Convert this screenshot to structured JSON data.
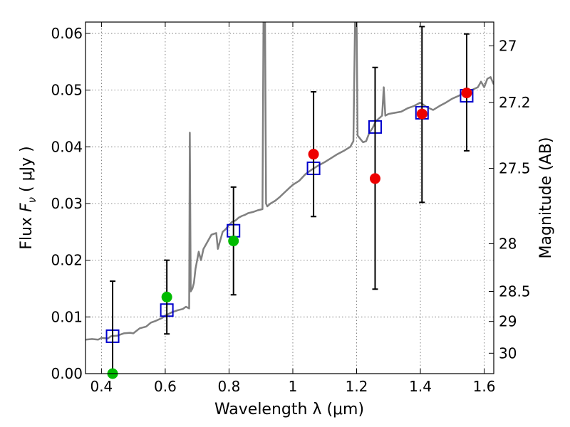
{
  "chart_data": {
    "type": "scatter",
    "title": "",
    "xlabel": "Wavelength  λ (μm)",
    "ylabel": "Flux  Fν  ( μJy )",
    "ylabel_parts": {
      "prefix": "Flux ",
      "symbol": "F",
      "sub": "ν",
      "unit": "  ( μJy )"
    },
    "xlabel_parts": {
      "text": "Wavelength  λ (μm)"
    },
    "y2label": "Magnitude (AB)",
    "xlim": [
      0.35,
      1.63
    ],
    "ylim": [
      0.0,
      0.062
    ],
    "grid": true,
    "x_ticks": [
      0.4,
      0.6,
      0.8,
      1.0,
      1.2,
      1.4,
      1.6
    ],
    "x_tick_labels": [
      "0.4",
      "0.6",
      "0.8",
      "1",
      "1.2",
      "1.4",
      "1.6"
    ],
    "y_ticks": [
      0.0,
      0.01,
      0.02,
      0.03,
      0.04,
      0.05,
      0.06
    ],
    "y_tick_labels": [
      "0.00",
      "0.01",
      "0.02",
      "0.03",
      "0.04",
      "0.05",
      "0.06"
    ],
    "mag_ticks": [
      {
        "label": "27",
        "flux": 0.0578
      },
      {
        "label": "27.2",
        "flux": 0.0478
      },
      {
        "label": "27.5",
        "flux": 0.0362
      },
      {
        "label": "28",
        "flux": 0.0229
      },
      {
        "label": "28.5",
        "flux": 0.0145
      },
      {
        "label": "29",
        "flux": 0.0092
      },
      {
        "label": "30",
        "flux": 0.0036
      }
    ],
    "colors": {
      "spectrum": "#808080",
      "model": "#0000cc",
      "obs_green": "#00bb00",
      "obs_red": "#ee0000",
      "errorbar": "#000000",
      "grid": "#666666"
    },
    "series": [
      {
        "kind": "line",
        "points": [
          [
            0.35,
            0.006
          ],
          [
            0.37,
            0.0061
          ],
          [
            0.39,
            0.006
          ],
          [
            0.4,
            0.0063
          ],
          [
            0.42,
            0.0062
          ],
          [
            0.43,
            0.0066
          ],
          [
            0.45,
            0.0067
          ],
          [
            0.47,
            0.0071
          ],
          [
            0.49,
            0.0072
          ],
          [
            0.5,
            0.0071
          ],
          [
            0.52,
            0.008
          ],
          [
            0.54,
            0.0083
          ],
          [
            0.555,
            0.009
          ],
          [
            0.57,
            0.0093
          ],
          [
            0.59,
            0.0098
          ],
          [
            0.6,
            0.0102
          ],
          [
            0.62,
            0.0108
          ],
          [
            0.64,
            0.0112
          ],
          [
            0.655,
            0.0114
          ],
          [
            0.665,
            0.0118
          ],
          [
            0.675,
            0.0115
          ],
          [
            0.677,
            0.0425
          ],
          [
            0.68,
            0.0145
          ],
          [
            0.685,
            0.015
          ],
          [
            0.69,
            0.016
          ],
          [
            0.695,
            0.0185
          ],
          [
            0.7,
            0.02
          ],
          [
            0.705,
            0.0215
          ],
          [
            0.712,
            0.02
          ],
          [
            0.72,
            0.022
          ],
          [
            0.73,
            0.023
          ],
          [
            0.745,
            0.0245
          ],
          [
            0.76,
            0.0248
          ],
          [
            0.765,
            0.022
          ],
          [
            0.77,
            0.023
          ],
          [
            0.78,
            0.025
          ],
          [
            0.79,
            0.0255
          ],
          [
            0.8,
            0.0262
          ],
          [
            0.81,
            0.0268
          ],
          [
            0.82,
            0.027
          ],
          [
            0.83,
            0.0275
          ],
          [
            0.84,
            0.0278
          ],
          [
            0.85,
            0.028
          ],
          [
            0.86,
            0.0283
          ],
          [
            0.875,
            0.0285
          ],
          [
            0.89,
            0.0288
          ],
          [
            0.905,
            0.029
          ],
          [
            0.908,
            0.062
          ],
          [
            0.913,
            0.062
          ],
          [
            0.916,
            0.03
          ],
          [
            0.92,
            0.0295
          ],
          [
            0.93,
            0.03
          ],
          [
            0.945,
            0.0305
          ],
          [
            0.96,
            0.0312
          ],
          [
            0.975,
            0.032
          ],
          [
            0.99,
            0.0328
          ],
          [
            1.0,
            0.0333
          ],
          [
            1.02,
            0.034
          ],
          [
            1.04,
            0.0352
          ],
          [
            1.06,
            0.036
          ],
          [
            1.08,
            0.0367
          ],
          [
            1.1,
            0.0373
          ],
          [
            1.12,
            0.038
          ],
          [
            1.14,
            0.0387
          ],
          [
            1.16,
            0.0393
          ],
          [
            1.18,
            0.04
          ],
          [
            1.19,
            0.041
          ],
          [
            1.195,
            0.062
          ],
          [
            1.2,
            0.062
          ],
          [
            1.203,
            0.042
          ],
          [
            1.21,
            0.0415
          ],
          [
            1.22,
            0.0408
          ],
          [
            1.23,
            0.041
          ],
          [
            1.24,
            0.0425
          ],
          [
            1.25,
            0.0433
          ],
          [
            1.26,
            0.0445
          ],
          [
            1.27,
            0.045
          ],
          [
            1.28,
            0.0455
          ],
          [
            1.285,
            0.0505
          ],
          [
            1.29,
            0.0455
          ],
          [
            1.3,
            0.0458
          ],
          [
            1.32,
            0.046
          ],
          [
            1.34,
            0.0462
          ],
          [
            1.36,
            0.0468
          ],
          [
            1.38,
            0.0472
          ],
          [
            1.4,
            0.0478
          ],
          [
            1.42,
            0.047
          ],
          [
            1.44,
            0.0465
          ],
          [
            1.46,
            0.0472
          ],
          [
            1.48,
            0.0478
          ],
          [
            1.5,
            0.0485
          ],
          [
            1.52,
            0.049
          ],
          [
            1.54,
            0.0496
          ],
          [
            1.56,
            0.05
          ],
          [
            1.58,
            0.0505
          ],
          [
            1.59,
            0.0515
          ],
          [
            1.6,
            0.0505
          ],
          [
            1.61,
            0.052
          ],
          [
            1.62,
            0.0523
          ],
          [
            1.63,
            0.051
          ]
        ]
      },
      {
        "kind": "model_squares",
        "x": [
          0.435,
          0.605,
          0.814,
          1.065,
          1.258,
          1.405,
          1.545
        ],
        "y": [
          0.0066,
          0.0112,
          0.0252,
          0.0362,
          0.0435,
          0.046,
          0.049
        ]
      },
      {
        "kind": "errorbars",
        "x": [
          0.435,
          0.605,
          0.814,
          1.065,
          1.258,
          1.405,
          1.545
        ],
        "lower": [
          0.0,
          0.007,
          0.0139,
          0.0277,
          0.0149,
          0.0302,
          0.0393
        ],
        "upper": [
          0.0163,
          0.02,
          0.0329,
          0.0497,
          0.054,
          0.0612,
          0.0599
        ]
      },
      {
        "kind": "observed",
        "x": [
          0.435,
          0.605,
          0.814,
          1.065,
          1.258,
          1.405,
          1.545
        ],
        "y": [
          0.0,
          0.0135,
          0.0234,
          0.0387,
          0.0344,
          0.0458,
          0.0495
        ],
        "colors": [
          "obs_green",
          "obs_green",
          "obs_green",
          "obs_red",
          "obs_red",
          "obs_red",
          "obs_red"
        ]
      }
    ]
  }
}
